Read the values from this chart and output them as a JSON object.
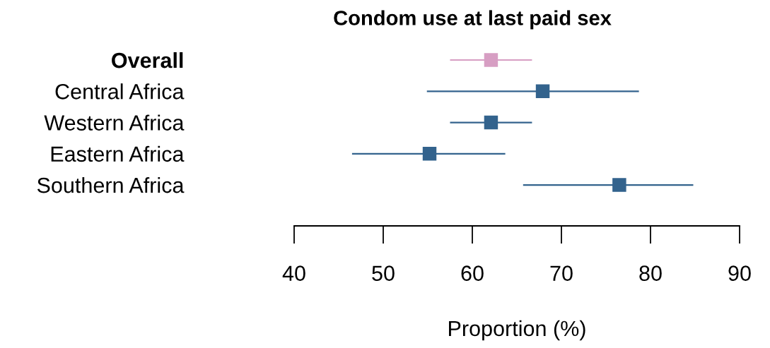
{
  "chart_data": {
    "type": "scatter",
    "title": "Condom use at last paid sex",
    "xlabel": "Proportion (%)",
    "orientation": "horizontal",
    "categories": [
      "Overall",
      "Central Africa",
      "Western Africa",
      "Eastern Africa",
      "Southern Africa"
    ],
    "values": [
      62.1,
      67.9,
      62.1,
      55.2,
      76.5
    ],
    "errors": [
      [
        57.5,
        66.7
      ],
      [
        54.9,
        78.7
      ],
      [
        57.5,
        66.7
      ],
      [
        46.5,
        63.7
      ],
      [
        65.7,
        84.8
      ]
    ],
    "colors": [
      "#d79ec3",
      "#33638d",
      "#33638d",
      "#33638d",
      "#33638d"
    ],
    "marker": "square",
    "grid": false,
    "xlim": [
      40,
      90
    ],
    "xticks": [
      40,
      50,
      60,
      70,
      80,
      90
    ]
  }
}
